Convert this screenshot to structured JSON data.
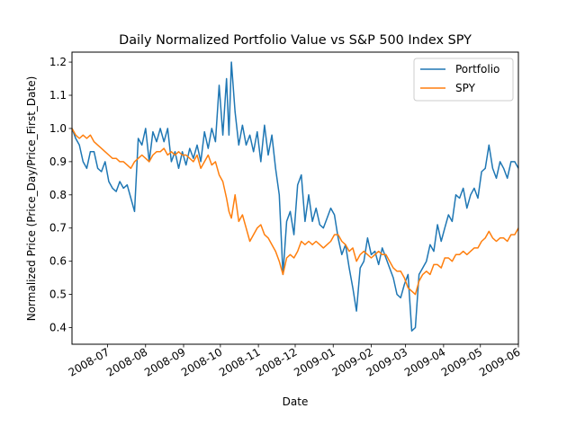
{
  "chart_data": {
    "type": "line",
    "title": "Daily Normalized Portfolio Value vs S&P 500 Index SPY",
    "xlabel": "Date",
    "ylabel": "Normalized Price (Price_Day/Price_First_Date)",
    "x_ticks": [
      "2008-07",
      "2008-08",
      "2008-09",
      "2008-10",
      "2008-11",
      "2008-12",
      "2009-01",
      "2009-02",
      "2009-03",
      "2009-04",
      "2009-05",
      "2009-06"
    ],
    "y_ticks": [
      "0.4",
      "0.5",
      "0.6",
      "0.7",
      "0.8",
      "0.9",
      "1.0",
      "1.1",
      "1.2"
    ],
    "xlim": [
      "2008-06-02",
      "2009-06-01"
    ],
    "ylim": [
      0.35,
      1.23
    ],
    "grid": false,
    "legend_position": "top-right",
    "series": [
      {
        "name": "Portfolio",
        "color": "#1f77b4",
        "points": [
          [
            "2008-06-02",
            1.0
          ],
          [
            "2008-06-05",
            0.97
          ],
          [
            "2008-06-08",
            0.95
          ],
          [
            "2008-06-11",
            0.9
          ],
          [
            "2008-06-14",
            0.88
          ],
          [
            "2008-06-17",
            0.93
          ],
          [
            "2008-06-20",
            0.93
          ],
          [
            "2008-06-23",
            0.88
          ],
          [
            "2008-06-26",
            0.87
          ],
          [
            "2008-06-29",
            0.9
          ],
          [
            "2008-07-02",
            0.84
          ],
          [
            "2008-07-05",
            0.82
          ],
          [
            "2008-07-08",
            0.81
          ],
          [
            "2008-07-11",
            0.84
          ],
          [
            "2008-07-14",
            0.82
          ],
          [
            "2008-07-17",
            0.83
          ],
          [
            "2008-07-20",
            0.79
          ],
          [
            "2008-07-23",
            0.75
          ],
          [
            "2008-07-26",
            0.97
          ],
          [
            "2008-07-29",
            0.95
          ],
          [
            "2008-08-01",
            1.0
          ],
          [
            "2008-08-04",
            0.9
          ],
          [
            "2008-08-07",
            0.99
          ],
          [
            "2008-08-10",
            0.96
          ],
          [
            "2008-08-13",
            1.0
          ],
          [
            "2008-08-16",
            0.96
          ],
          [
            "2008-08-19",
            1.0
          ],
          [
            "2008-08-22",
            0.9
          ],
          [
            "2008-08-25",
            0.93
          ],
          [
            "2008-08-28",
            0.88
          ],
          [
            "2008-08-31",
            0.93
          ],
          [
            "2008-09-03",
            0.89
          ],
          [
            "2008-09-06",
            0.94
          ],
          [
            "2008-09-09",
            0.91
          ],
          [
            "2008-09-12",
            0.95
          ],
          [
            "2008-09-15",
            0.9
          ],
          [
            "2008-09-18",
            0.99
          ],
          [
            "2008-09-21",
            0.94
          ],
          [
            "2008-09-24",
            1.0
          ],
          [
            "2008-09-27",
            0.96
          ],
          [
            "2008-09-30",
            1.13
          ],
          [
            "2008-10-03",
            0.98
          ],
          [
            "2008-10-06",
            1.15
          ],
          [
            "2008-10-08",
            0.98
          ],
          [
            "2008-10-10",
            1.2
          ],
          [
            "2008-10-13",
            1.05
          ],
          [
            "2008-10-16",
            0.95
          ],
          [
            "2008-10-19",
            1.01
          ],
          [
            "2008-10-22",
            0.95
          ],
          [
            "2008-10-25",
            0.98
          ],
          [
            "2008-10-28",
            0.93
          ],
          [
            "2008-10-31",
            0.99
          ],
          [
            "2008-11-03",
            0.9
          ],
          [
            "2008-11-06",
            1.01
          ],
          [
            "2008-11-09",
            0.92
          ],
          [
            "2008-11-12",
            0.98
          ],
          [
            "2008-11-15",
            0.88
          ],
          [
            "2008-11-18",
            0.8
          ],
          [
            "2008-11-21",
            0.56
          ],
          [
            "2008-11-24",
            0.72
          ],
          [
            "2008-11-27",
            0.75
          ],
          [
            "2008-11-30",
            0.68
          ],
          [
            "2008-12-03",
            0.83
          ],
          [
            "2008-12-06",
            0.86
          ],
          [
            "2008-12-09",
            0.72
          ],
          [
            "2008-12-12",
            0.8
          ],
          [
            "2008-12-15",
            0.72
          ],
          [
            "2008-12-18",
            0.76
          ],
          [
            "2008-12-21",
            0.71
          ],
          [
            "2008-12-24",
            0.7
          ],
          [
            "2008-12-27",
            0.73
          ],
          [
            "2008-12-30",
            0.76
          ],
          [
            "2009-01-02",
            0.74
          ],
          [
            "2009-01-05",
            0.67
          ],
          [
            "2009-01-08",
            0.62
          ],
          [
            "2009-01-11",
            0.65
          ],
          [
            "2009-01-14",
            0.58
          ],
          [
            "2009-01-17",
            0.52
          ],
          [
            "2009-01-20",
            0.45
          ],
          [
            "2009-01-23",
            0.58
          ],
          [
            "2009-01-26",
            0.6
          ],
          [
            "2009-01-29",
            0.67
          ],
          [
            "2009-02-01",
            0.62
          ],
          [
            "2009-02-04",
            0.63
          ],
          [
            "2009-02-07",
            0.59
          ],
          [
            "2009-02-10",
            0.64
          ],
          [
            "2009-02-13",
            0.61
          ],
          [
            "2009-02-16",
            0.58
          ],
          [
            "2009-02-19",
            0.55
          ],
          [
            "2009-02-22",
            0.5
          ],
          [
            "2009-02-25",
            0.49
          ],
          [
            "2009-02-28",
            0.53
          ],
          [
            "2009-03-03",
            0.56
          ],
          [
            "2009-03-06",
            0.39
          ],
          [
            "2009-03-09",
            0.4
          ],
          [
            "2009-03-12",
            0.56
          ],
          [
            "2009-03-15",
            0.58
          ],
          [
            "2009-03-18",
            0.6
          ],
          [
            "2009-03-21",
            0.65
          ],
          [
            "2009-03-24",
            0.63
          ],
          [
            "2009-03-27",
            0.71
          ],
          [
            "2009-03-30",
            0.66
          ],
          [
            "2009-04-02",
            0.7
          ],
          [
            "2009-04-05",
            0.74
          ],
          [
            "2009-04-08",
            0.72
          ],
          [
            "2009-04-11",
            0.8
          ],
          [
            "2009-04-14",
            0.79
          ],
          [
            "2009-04-17",
            0.82
          ],
          [
            "2009-04-20",
            0.76
          ],
          [
            "2009-04-23",
            0.8
          ],
          [
            "2009-04-26",
            0.82
          ],
          [
            "2009-04-29",
            0.79
          ],
          [
            "2009-05-02",
            0.87
          ],
          [
            "2009-05-05",
            0.88
          ],
          [
            "2009-05-08",
            0.95
          ],
          [
            "2009-05-11",
            0.88
          ],
          [
            "2009-05-14",
            0.85
          ],
          [
            "2009-05-17",
            0.9
          ],
          [
            "2009-05-20",
            0.88
          ],
          [
            "2009-05-23",
            0.85
          ],
          [
            "2009-05-26",
            0.9
          ],
          [
            "2009-05-29",
            0.9
          ],
          [
            "2009-06-01",
            0.88
          ]
        ]
      },
      {
        "name": "SPY",
        "color": "#ff7f0e",
        "points": [
          [
            "2008-06-02",
            1.0
          ],
          [
            "2008-06-05",
            0.98
          ],
          [
            "2008-06-08",
            0.97
          ],
          [
            "2008-06-11",
            0.98
          ],
          [
            "2008-06-14",
            0.97
          ],
          [
            "2008-06-17",
            0.98
          ],
          [
            "2008-06-20",
            0.96
          ],
          [
            "2008-06-23",
            0.95
          ],
          [
            "2008-06-26",
            0.94
          ],
          [
            "2008-06-29",
            0.93
          ],
          [
            "2008-07-02",
            0.92
          ],
          [
            "2008-07-05",
            0.91
          ],
          [
            "2008-07-08",
            0.91
          ],
          [
            "2008-07-11",
            0.9
          ],
          [
            "2008-07-14",
            0.9
          ],
          [
            "2008-07-17",
            0.89
          ],
          [
            "2008-07-20",
            0.88
          ],
          [
            "2008-07-23",
            0.9
          ],
          [
            "2008-07-26",
            0.91
          ],
          [
            "2008-07-29",
            0.92
          ],
          [
            "2008-08-01",
            0.91
          ],
          [
            "2008-08-04",
            0.9
          ],
          [
            "2008-08-07",
            0.92
          ],
          [
            "2008-08-10",
            0.93
          ],
          [
            "2008-08-13",
            0.93
          ],
          [
            "2008-08-16",
            0.94
          ],
          [
            "2008-08-19",
            0.92
          ],
          [
            "2008-08-22",
            0.93
          ],
          [
            "2008-08-25",
            0.92
          ],
          [
            "2008-08-28",
            0.93
          ],
          [
            "2008-08-31",
            0.92
          ],
          [
            "2008-09-03",
            0.92
          ],
          [
            "2008-09-06",
            0.91
          ],
          [
            "2008-09-09",
            0.9
          ],
          [
            "2008-09-12",
            0.92
          ],
          [
            "2008-09-15",
            0.88
          ],
          [
            "2008-09-18",
            0.9
          ],
          [
            "2008-09-21",
            0.92
          ],
          [
            "2008-09-24",
            0.89
          ],
          [
            "2008-09-27",
            0.9
          ],
          [
            "2008-09-30",
            0.86
          ],
          [
            "2008-10-03",
            0.84
          ],
          [
            "2008-10-06",
            0.79
          ],
          [
            "2008-10-08",
            0.75
          ],
          [
            "2008-10-10",
            0.73
          ],
          [
            "2008-10-13",
            0.8
          ],
          [
            "2008-10-16",
            0.72
          ],
          [
            "2008-10-19",
            0.74
          ],
          [
            "2008-10-22",
            0.7
          ],
          [
            "2008-10-25",
            0.66
          ],
          [
            "2008-10-28",
            0.68
          ],
          [
            "2008-10-31",
            0.7
          ],
          [
            "2008-11-03",
            0.71
          ],
          [
            "2008-11-06",
            0.68
          ],
          [
            "2008-11-09",
            0.67
          ],
          [
            "2008-11-12",
            0.65
          ],
          [
            "2008-11-15",
            0.63
          ],
          [
            "2008-11-18",
            0.6
          ],
          [
            "2008-11-21",
            0.56
          ],
          [
            "2008-11-24",
            0.61
          ],
          [
            "2008-11-27",
            0.62
          ],
          [
            "2008-11-30",
            0.61
          ],
          [
            "2008-12-03",
            0.63
          ],
          [
            "2008-12-06",
            0.66
          ],
          [
            "2008-12-09",
            0.65
          ],
          [
            "2008-12-12",
            0.66
          ],
          [
            "2008-12-15",
            0.65
          ],
          [
            "2008-12-18",
            0.66
          ],
          [
            "2008-12-21",
            0.65
          ],
          [
            "2008-12-24",
            0.64
          ],
          [
            "2008-12-27",
            0.65
          ],
          [
            "2008-12-30",
            0.66
          ],
          [
            "2009-01-02",
            0.68
          ],
          [
            "2009-01-05",
            0.68
          ],
          [
            "2009-01-08",
            0.66
          ],
          [
            "2009-01-11",
            0.65
          ],
          [
            "2009-01-14",
            0.63
          ],
          [
            "2009-01-17",
            0.64
          ],
          [
            "2009-01-20",
            0.6
          ],
          [
            "2009-01-23",
            0.62
          ],
          [
            "2009-01-26",
            0.63
          ],
          [
            "2009-01-29",
            0.62
          ],
          [
            "2009-02-01",
            0.61
          ],
          [
            "2009-02-04",
            0.62
          ],
          [
            "2009-02-07",
            0.63
          ],
          [
            "2009-02-10",
            0.62
          ],
          [
            "2009-02-13",
            0.62
          ],
          [
            "2009-02-16",
            0.6
          ],
          [
            "2009-02-19",
            0.58
          ],
          [
            "2009-02-22",
            0.57
          ],
          [
            "2009-02-25",
            0.57
          ],
          [
            "2009-02-28",
            0.55
          ],
          [
            "2009-03-03",
            0.52
          ],
          [
            "2009-03-06",
            0.51
          ],
          [
            "2009-03-09",
            0.5
          ],
          [
            "2009-03-12",
            0.54
          ],
          [
            "2009-03-15",
            0.56
          ],
          [
            "2009-03-18",
            0.57
          ],
          [
            "2009-03-21",
            0.56
          ],
          [
            "2009-03-24",
            0.59
          ],
          [
            "2009-03-27",
            0.59
          ],
          [
            "2009-03-30",
            0.58
          ],
          [
            "2009-04-02",
            0.61
          ],
          [
            "2009-04-05",
            0.61
          ],
          [
            "2009-04-08",
            0.6
          ],
          [
            "2009-04-11",
            0.62
          ],
          [
            "2009-04-14",
            0.62
          ],
          [
            "2009-04-17",
            0.63
          ],
          [
            "2009-04-20",
            0.62
          ],
          [
            "2009-04-23",
            0.63
          ],
          [
            "2009-04-26",
            0.64
          ],
          [
            "2009-04-29",
            0.64
          ],
          [
            "2009-05-02",
            0.66
          ],
          [
            "2009-05-05",
            0.67
          ],
          [
            "2009-05-08",
            0.69
          ],
          [
            "2009-05-11",
            0.67
          ],
          [
            "2009-05-14",
            0.66
          ],
          [
            "2009-05-17",
            0.67
          ],
          [
            "2009-05-20",
            0.67
          ],
          [
            "2009-05-23",
            0.66
          ],
          [
            "2009-05-26",
            0.68
          ],
          [
            "2009-05-29",
            0.68
          ],
          [
            "2009-06-01",
            0.7
          ]
        ]
      }
    ]
  }
}
